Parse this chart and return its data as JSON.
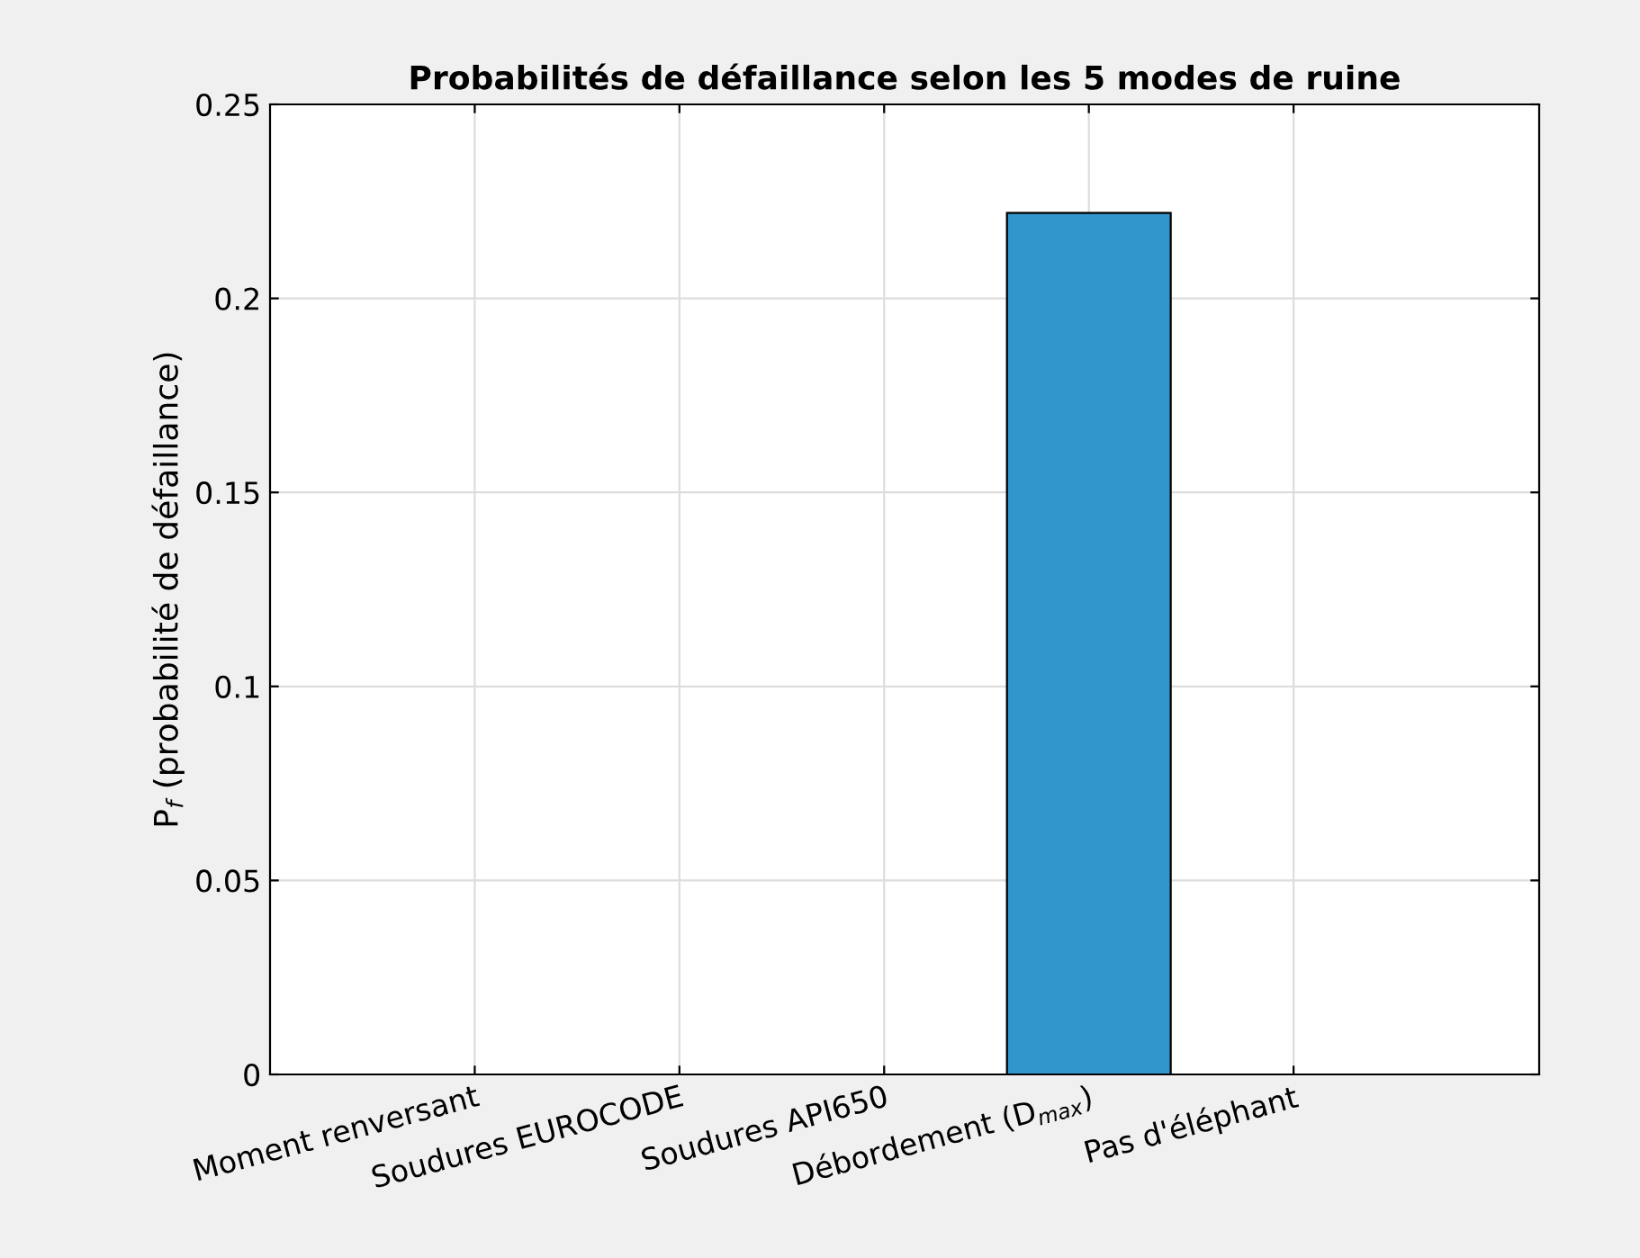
{
  "chart_data": {
    "type": "bar",
    "title": "Probabilités de défaillance selon les 5 modes de ruine",
    "ylabel": "P$_{f}$ (probabilité de défaillance)",
    "categories": [
      "Moment renversant",
      "Soudures EUROCODE",
      "Soudures API650",
      "Débordement (D$_{max}$)",
      "Pas d'éléphant"
    ],
    "values": [
      0,
      0,
      0,
      0.222,
      0
    ],
    "color": "#3096cc",
    "ylim": [
      0,
      0.25
    ],
    "yticks": [
      0,
      0.05,
      0.1,
      0.15,
      0.2,
      0.25
    ],
    "grid": true
  }
}
